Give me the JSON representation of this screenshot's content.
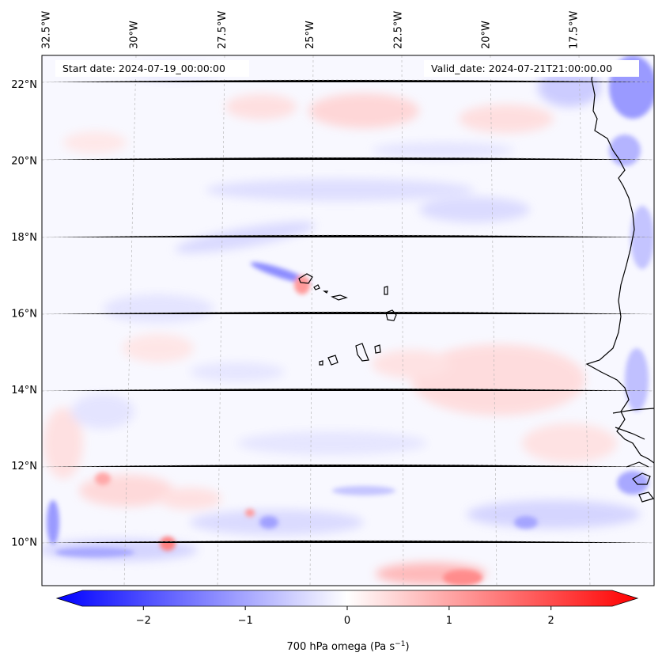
{
  "map": {
    "start_date": "Start date: 2024-07-19_00:00:00",
    "valid_date": "Valid_date: 2024-07-21T21:00:00.00",
    "lon_labels": [
      "32.5°W",
      "30°W",
      "27.5°W",
      "25°W",
      "22.5°W",
      "20°W",
      "17.5°W"
    ],
    "lat_labels": [
      "22°N",
      "20°N",
      "18°N",
      "16°N",
      "14°N",
      "12°N",
      "10°N"
    ],
    "lon_values": [
      -32.5,
      -30,
      -27.5,
      -25,
      -22.5,
      -20,
      -17.5
    ],
    "lat_values": [
      22,
      20,
      18,
      16,
      14,
      12,
      10
    ],
    "extent": {
      "lon_min": -32.6,
      "lon_max": -15.2,
      "lat_min": 8.85,
      "lat_max": 22.75
    }
  },
  "colorbar": {
    "label": "700 hPa omega (Pa s",
    "label_sup": "−1",
    "label_close": ")",
    "tick_labels": [
      "−2",
      "−1",
      "0",
      "1",
      "2"
    ],
    "tick_values": [
      -2,
      -1,
      0,
      1,
      2
    ],
    "range": [
      -2.6,
      2.6
    ],
    "colormap": "bwr",
    "color_min": "#0000ff",
    "color_mid": "#ffffff",
    "color_max": "#ff0000"
  }
}
